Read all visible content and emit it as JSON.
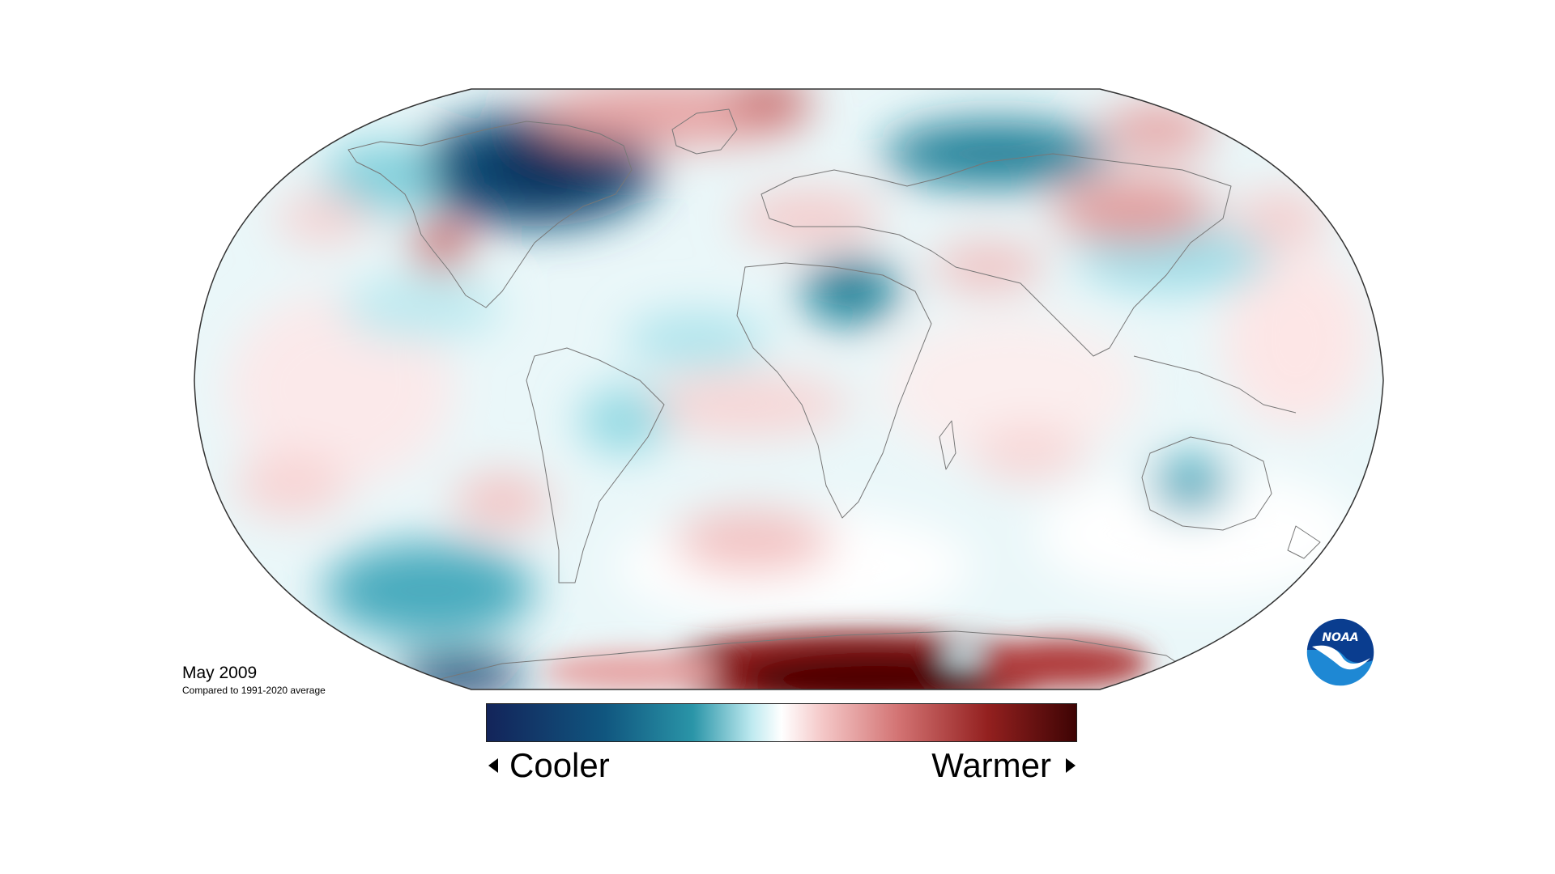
{
  "caption": {
    "title": "May 2009",
    "subtitle": "Compared to 1991-2020 average"
  },
  "legend": {
    "cooler_label": "Cooler",
    "warmer_label": "Warmer",
    "colors": [
      "#13245a",
      "#0f6b8a",
      "#6cc9d6",
      "#ffffff",
      "#e8a3a3",
      "#a8302e",
      "#4a0505"
    ]
  },
  "logo": {
    "text": "NOAA",
    "icon": "noaa-logo-icon",
    "colors": [
      "#0a3d8f",
      "#1e88d4",
      "#ffffff"
    ]
  },
  "map": {
    "projection": "robinson",
    "regions": [
      {
        "name": "canada-arctic-cold",
        "anomaly": "cold-strong"
      },
      {
        "name": "east-siberia-cold",
        "anomaly": "cold-strong"
      },
      {
        "name": "north-africa-cold",
        "anomaly": "cold-medium"
      },
      {
        "name": "australia-cold",
        "anomaly": "cold-medium"
      },
      {
        "name": "south-pacific-cold",
        "anomaly": "cold-medium"
      },
      {
        "name": "amazon-cold",
        "anomaly": "cold-weak"
      },
      {
        "name": "antarctica-warm",
        "anomaly": "warm-strong"
      },
      {
        "name": "greenland-warm",
        "anomaly": "warm-medium"
      },
      {
        "name": "southwest-usa-warm",
        "anomaly": "warm-medium"
      },
      {
        "name": "central-asia-warm",
        "anomaly": "warm-medium"
      },
      {
        "name": "south-atlantic-warm",
        "anomaly": "warm-weak"
      },
      {
        "name": "indian-ocean-warm",
        "anomaly": "warm-weak"
      }
    ]
  }
}
